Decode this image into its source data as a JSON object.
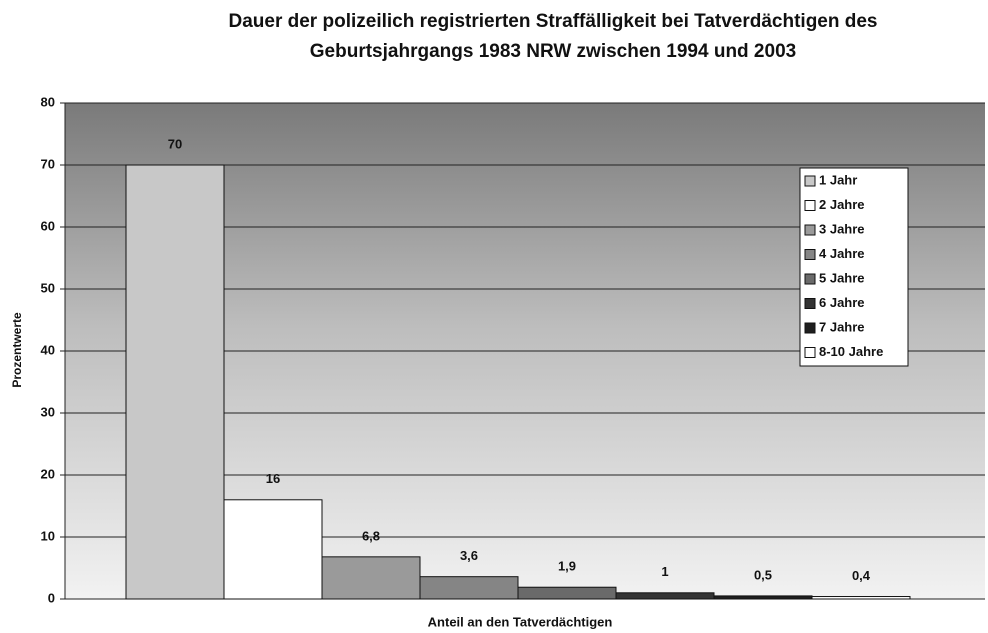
{
  "chart_data": {
    "type": "bar",
    "title": [
      "Dauer der polizeilich registrierten Straffälligkeit bei Tatverdächtigen des",
      "Geburtsjahrgangs 1983 NRW zwischen 1994 und 2003"
    ],
    "x_label": "Anteil an den Tatverdächtigen",
    "y_label": "Prozentwerte",
    "categories": [
      null
    ],
    "series": [
      {
        "name": "1 Jahr",
        "color": "#c8c8c8",
        "values": [
          70
        ]
      },
      {
        "name": "2 Jahre",
        "color": "#ffffff",
        "values": [
          16
        ]
      },
      {
        "name": "3 Jahre",
        "color": "#9a9a9a",
        "values": [
          6.8
        ],
        "value_labels": [
          "6,8"
        ]
      },
      {
        "name": "4 Jahre",
        "color": "#858585",
        "values": [
          3.6
        ],
        "value_labels": [
          "3,6"
        ]
      },
      {
        "name": "5 Jahre",
        "color": "#6a6a6a",
        "values": [
          1.9
        ],
        "value_labels": [
          "1,9"
        ]
      },
      {
        "name": "6 Jahre",
        "color": "#333333",
        "values": [
          1
        ]
      },
      {
        "name": "7 Jahre",
        "color": "#1e1e1e",
        "values": [
          0.5
        ],
        "value_labels": [
          "0,5"
        ]
      },
      {
        "name": "8-10 Jahre",
        "color": "#ffffff",
        "values": [
          0.4
        ],
        "value_labels": [
          "0,4"
        ]
      }
    ],
    "ylim": [
      0,
      80
    ],
    "yticks": [
      0,
      10,
      20,
      30,
      40,
      50,
      60,
      70,
      80
    ],
    "grid": true,
    "legend": "upper right"
  }
}
